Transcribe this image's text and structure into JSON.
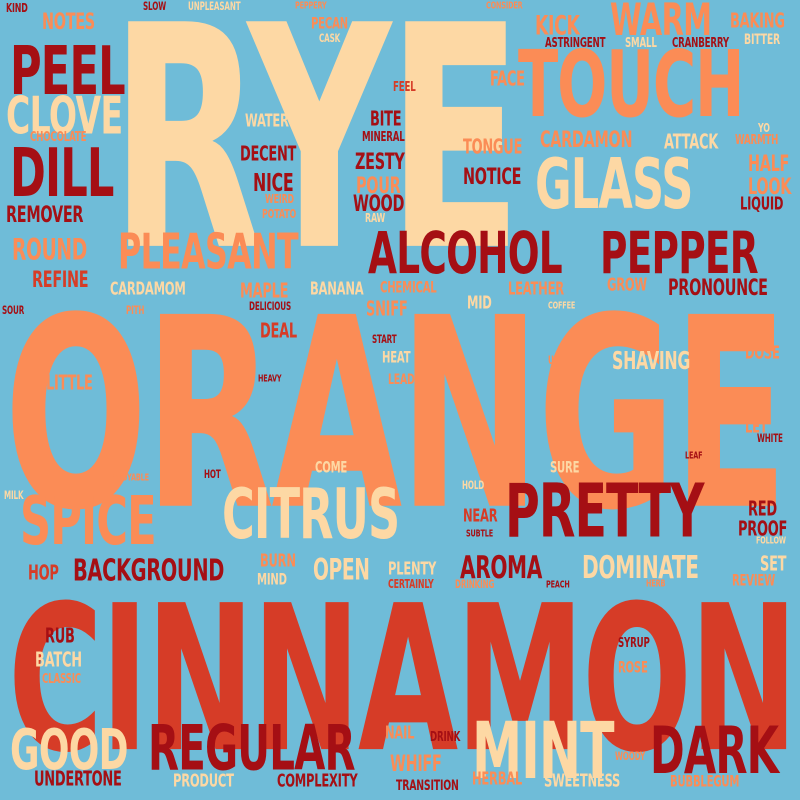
{
  "palette": {
    "background": "#6fbcd8",
    "cream": "#fdd8a4",
    "orange": "#fb8c56",
    "red": "#d63c27",
    "darkred": "#a50f14"
  },
  "words": [
    {
      "text": "RYE",
      "color": "cream"
    },
    {
      "text": "ORANGE",
      "color": "orange"
    },
    {
      "text": "CINNAMON",
      "color": "red"
    },
    {
      "text": "TOUCH",
      "color": "orange"
    },
    {
      "text": "PEEL",
      "color": "darkred"
    },
    {
      "text": "CLOVE",
      "color": "cream"
    },
    {
      "text": "DILL",
      "color": "darkred"
    },
    {
      "text": "GLASS",
      "color": "cream"
    },
    {
      "text": "WARM",
      "color": "orange"
    },
    {
      "text": "ALCOHOL",
      "color": "darkred"
    },
    {
      "text": "PEPPER",
      "color": "darkred"
    },
    {
      "text": "PLEASANT",
      "color": "orange"
    },
    {
      "text": "SPICE",
      "color": "orange"
    },
    {
      "text": "CITRUS",
      "color": "cream"
    },
    {
      "text": "PRETTY",
      "color": "darkred"
    },
    {
      "text": "REGULAR",
      "color": "darkred"
    },
    {
      "text": "MINT",
      "color": "cream"
    },
    {
      "text": "DARK",
      "color": "darkred"
    },
    {
      "text": "GOOD",
      "color": "cream"
    },
    {
      "text": "BACKGROUND",
      "color": "darkred"
    },
    {
      "text": "DOMINATE",
      "color": "cream"
    },
    {
      "text": "AROMA",
      "color": "darkred"
    },
    {
      "text": "OPEN",
      "color": "cream"
    },
    {
      "text": "CARDAMON",
      "color": "orange"
    },
    {
      "text": "NOTICE",
      "color": "darkred"
    },
    {
      "text": "REMOVER",
      "color": "darkred"
    },
    {
      "text": "ROUND",
      "color": "orange"
    },
    {
      "text": "KICK",
      "color": "orange"
    },
    {
      "text": "NOTES",
      "color": "orange"
    },
    {
      "text": "PRONOUNCE",
      "color": "darkred"
    },
    {
      "text": "SHAVING",
      "color": "cream"
    },
    {
      "text": "TONGUE",
      "color": "orange"
    },
    {
      "text": "ATTACK",
      "color": "cream"
    },
    {
      "text": "DECENT",
      "color": "darkred"
    },
    {
      "text": "ZESTY",
      "color": "darkred"
    },
    {
      "text": "NICE",
      "color": "darkred"
    },
    {
      "text": "POUR",
      "color": "orange"
    },
    {
      "text": "WOOD",
      "color": "darkred"
    },
    {
      "text": "BITE",
      "color": "darkred"
    },
    {
      "text": "FACE",
      "color": "orange"
    },
    {
      "text": "WATER",
      "color": "cream"
    },
    {
      "text": "BAKING",
      "color": "orange"
    },
    {
      "text": "HALF",
      "color": "orange"
    },
    {
      "text": "LOOK",
      "color": "orange"
    },
    {
      "text": "LIQUID",
      "color": "darkred"
    },
    {
      "text": "REFINE",
      "color": "red"
    },
    {
      "text": "CARDAMOM",
      "color": "cream"
    },
    {
      "text": "MAPLE",
      "color": "orange"
    },
    {
      "text": "BANANA",
      "color": "cream"
    },
    {
      "text": "CHEMICAL",
      "color": "orange"
    },
    {
      "text": "LEATHER",
      "color": "orange"
    },
    {
      "text": "GROW",
      "color": "orange"
    },
    {
      "text": "SNIFF",
      "color": "orange"
    },
    {
      "text": "MID",
      "color": "cream"
    },
    {
      "text": "DEAL",
      "color": "red"
    },
    {
      "text": "DOSE",
      "color": "orange"
    },
    {
      "text": "LITTLE",
      "color": "orange"
    },
    {
      "text": "HEAT",
      "color": "cream"
    },
    {
      "text": "LEAD",
      "color": "orange"
    },
    {
      "text": "LET",
      "color": "orange"
    },
    {
      "text": "BURN",
      "color": "orange"
    },
    {
      "text": "MIND",
      "color": "cream"
    },
    {
      "text": "PLENTY",
      "color": "cream"
    },
    {
      "text": "NEAR",
      "color": "red"
    },
    {
      "text": "COME",
      "color": "cream"
    },
    {
      "text": "SURE",
      "color": "cream"
    },
    {
      "text": "RED",
      "color": "darkred"
    },
    {
      "text": "PROOF",
      "color": "darkred"
    },
    {
      "text": "SET",
      "color": "cream"
    },
    {
      "text": "REVIEW",
      "color": "orange"
    },
    {
      "text": "HOP",
      "color": "red"
    },
    {
      "text": "RUB",
      "color": "darkred"
    },
    {
      "text": "BATCH",
      "color": "cream"
    },
    {
      "text": "CLASSIC",
      "color": "orange"
    },
    {
      "text": "SYRUP",
      "color": "darkred"
    },
    {
      "text": "ROSE",
      "color": "orange"
    },
    {
      "text": "NAIL",
      "color": "orange"
    },
    {
      "text": "DRINK",
      "color": "darkred"
    },
    {
      "text": "WHIFF",
      "color": "orange"
    },
    {
      "text": "UNDERTONE",
      "color": "darkred"
    },
    {
      "text": "PRODUCT",
      "color": "cream"
    },
    {
      "text": "COMPLEXITY",
      "color": "darkred"
    },
    {
      "text": "TRANSITION",
      "color": "darkred"
    },
    {
      "text": "HERBAL",
      "color": "orange"
    },
    {
      "text": "SWEETNESS",
      "color": "cream"
    },
    {
      "text": "BUBBLEGUM",
      "color": "orange"
    },
    {
      "text": "WOODY",
      "color": "orange"
    },
    {
      "text": "KIND",
      "color": "darkred"
    },
    {
      "text": "SLOW",
      "color": "darkred"
    },
    {
      "text": "UNPLEASANT",
      "color": "cream"
    },
    {
      "text": "PEPPERY",
      "color": "orange"
    },
    {
      "text": "PECAN",
      "color": "orange"
    },
    {
      "text": "CASK",
      "color": "cream"
    },
    {
      "text": "CONSIDER",
      "color": "orange"
    },
    {
      "text": "ASTRINGENT",
      "color": "darkred"
    },
    {
      "text": "SMALL",
      "color": "cream"
    },
    {
      "text": "CRANBERRY",
      "color": "darkred"
    },
    {
      "text": "BITTER",
      "color": "cream"
    },
    {
      "text": "FEEL",
      "color": "red"
    },
    {
      "text": "MINERAL",
      "color": "darkred"
    },
    {
      "text": "YO",
      "color": "cream"
    },
    {
      "text": "CHOCOLATE",
      "color": "orange"
    },
    {
      "text": "WARMTH",
      "color": "orange"
    },
    {
      "text": "WEIRD",
      "color": "orange"
    },
    {
      "text": "POTATO",
      "color": "orange"
    },
    {
      "text": "RAW",
      "color": "cream"
    },
    {
      "text": "SOUR",
      "color": "darkred"
    },
    {
      "text": "PITH",
      "color": "orange"
    },
    {
      "text": "DELICIOUS",
      "color": "darkred"
    },
    {
      "text": "COFFEE",
      "color": "cream"
    },
    {
      "text": "START",
      "color": "darkred"
    },
    {
      "text": "USE",
      "color": "orange"
    },
    {
      "text": "HEAVY",
      "color": "darkred"
    },
    {
      "text": "WHITE",
      "color": "darkred"
    },
    {
      "text": "LEAF",
      "color": "darkred"
    },
    {
      "text": "ENJOYABLE",
      "color": "orange"
    },
    {
      "text": "HOT",
      "color": "darkred"
    },
    {
      "text": "MILK",
      "color": "cream"
    },
    {
      "text": "HOLD",
      "color": "cream"
    },
    {
      "text": "SUBTLE",
      "color": "darkred"
    },
    {
      "text": "FOLLOW",
      "color": "cream"
    },
    {
      "text": "CERTAINLY",
      "color": "red"
    },
    {
      "text": "DRINKING",
      "color": "orange"
    },
    {
      "text": "PEACH",
      "color": "darkred"
    },
    {
      "text": "HERB",
      "color": "orange"
    }
  ]
}
